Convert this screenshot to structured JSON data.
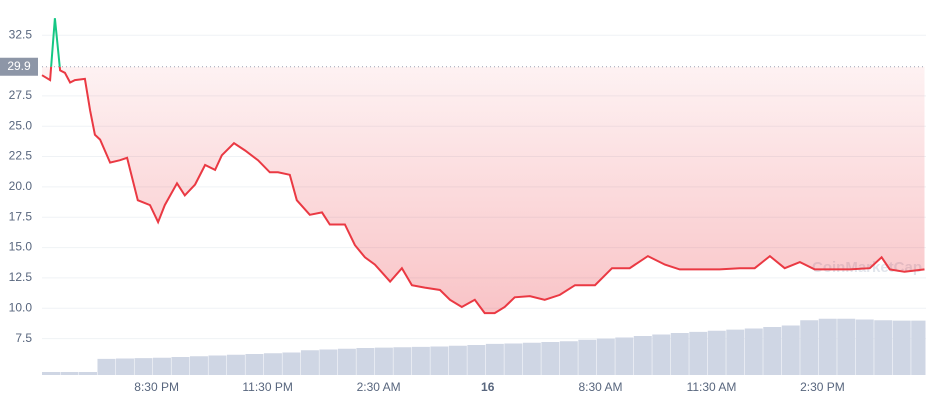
{
  "chart_data": {
    "type": "line",
    "baseline": 29.9,
    "watermark": "CoinMarketCap",
    "xlim": [
      0,
      23.9
    ],
    "ylim": [
      4.5,
      35.4
    ],
    "y2lim": [
      0,
      100
    ],
    "grid": true,
    "xticks": [
      {
        "value": 3.1,
        "label": "8:30 PM"
      },
      {
        "value": 6.1,
        "label": "11:30 PM"
      },
      {
        "value": 9.1,
        "label": "2:30 AM"
      },
      {
        "value": 12.05,
        "label": "16"
      },
      {
        "value": 15.1,
        "label": "8:30 AM"
      },
      {
        "value": 18.1,
        "label": "11:30 AM"
      },
      {
        "value": 21.1,
        "label": "2:30 PM"
      }
    ],
    "yticks": [
      7.5,
      {
        "value": 10,
        "label": "10.0"
      },
      12.5,
      {
        "value": 15,
        "label": "15.0"
      },
      17.5,
      {
        "value": 20,
        "label": "20.0"
      },
      22.5,
      {
        "value": 25,
        "label": "25.0"
      },
      27.5,
      32.5
    ],
    "series": [
      {
        "color": "#ea3943",
        "up_color": "#16c784",
        "x": [
          0,
          0.22,
          0.35,
          0.49,
          0.62,
          0.76,
          0.89,
          1.16,
          1.3,
          1.43,
          1.57,
          1.84,
          2.11,
          2.3,
          2.59,
          2.92,
          3.14,
          3.32,
          3.65,
          3.86,
          4.14,
          4.41,
          4.68,
          4.86,
          5.19,
          5.49,
          5.84,
          6.16,
          6.38,
          6.7,
          6.89,
          7.24,
          7.57,
          7.78,
          8.19,
          8.46,
          8.73,
          9.0,
          9.41,
          9.73,
          10.0,
          10.35,
          10.76,
          11.03,
          11.35,
          11.7,
          11.97,
          12.24,
          12.51,
          12.78,
          13.19,
          13.59,
          14.0,
          14.41,
          14.95,
          15.41,
          15.89,
          16.38,
          16.84,
          17.24,
          17.78,
          18.32,
          18.86,
          19.27,
          19.68,
          20.08,
          20.49,
          20.89,
          21.43,
          21.84,
          22.38,
          22.7,
          22.92,
          23.32,
          23.86
        ],
        "values": [
          29.2,
          28.8,
          33.9,
          29.6,
          29.4,
          28.6,
          28.8,
          28.9,
          26.3,
          24.3,
          23.9,
          22.0,
          22.2,
          22.4,
          18.9,
          18.5,
          17.1,
          18.5,
          20.3,
          19.3,
          20.2,
          21.8,
          21.4,
          22.6,
          23.6,
          23.0,
          22.2,
          21.2,
          21.2,
          21.0,
          18.9,
          17.7,
          17.9,
          16.9,
          16.9,
          15.2,
          14.2,
          13.6,
          12.2,
          13.3,
          11.9,
          11.7,
          11.5,
          10.7,
          10.1,
          10.7,
          9.6,
          9.6,
          10.1,
          10.9,
          11.0,
          10.7,
          11.1,
          11.9,
          11.9,
          13.3,
          13.3,
          14.3,
          13.6,
          13.2,
          13.2,
          13.2,
          13.3,
          13.3,
          14.3,
          13.3,
          13.8,
          13.2,
          13.2,
          13.2,
          13.3,
          14.2,
          13.2,
          13.0,
          13.2
        ]
      },
      {
        "type": "bar",
        "axis": "y2",
        "color": "#cfd6e4",
        "x": [
          0,
          0.5,
          1,
          1.5,
          2,
          2.5,
          3,
          3.5,
          4,
          4.5,
          5,
          5.5,
          6,
          6.5,
          7,
          7.5,
          8,
          8.5,
          9,
          9.5,
          10,
          10.5,
          11,
          11.5,
          12,
          12.5,
          13,
          13.5,
          14,
          14.5,
          15,
          15.5,
          16,
          16.5,
          17,
          17.5,
          18,
          18.5,
          19,
          19.5,
          20,
          20.5,
          21,
          21.5,
          22,
          22.5,
          23,
          23.5
        ],
        "values": [
          0.8,
          0.8,
          0.8,
          4.3,
          4.4,
          4.5,
          4.6,
          4.8,
          5.0,
          5.2,
          5.4,
          5.6,
          5.8,
          6.0,
          6.6,
          6.8,
          7.0,
          7.2,
          7.3,
          7.4,
          7.5,
          7.6,
          7.8,
          8.0,
          8.3,
          8.4,
          8.6,
          8.8,
          9.0,
          9.4,
          9.7,
          10.0,
          10.4,
          10.8,
          11.2,
          11.5,
          11.8,
          12.1,
          12.4,
          12.8,
          13.2,
          14.6,
          15.0,
          15.0,
          14.8,
          14.6,
          14.5,
          14.5
        ]
      }
    ]
  }
}
